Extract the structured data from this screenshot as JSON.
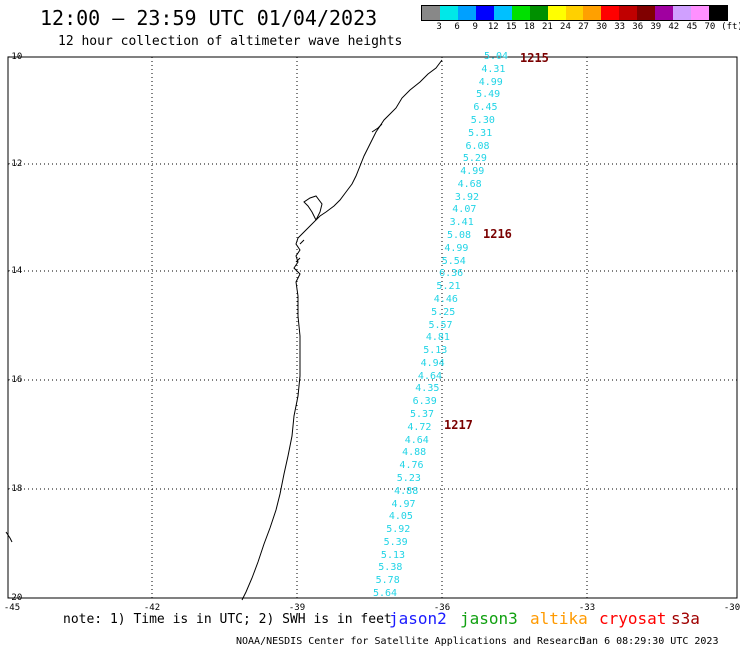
{
  "title": "12:00 – 23:59 UTC 01/04/2023",
  "subtitle": "12 hour collection of altimeter wave heights",
  "colorbar": {
    "colors": [
      "#888888",
      "#00e8e8",
      "#00a0ff",
      "#0000ff",
      "#00c0ff",
      "#00e000",
      "#009000",
      "#ffff00",
      "#ffd000",
      "#ffa000",
      "#ff0000",
      "#c00000",
      "#800000",
      "#a000a0",
      "#d0a0ff",
      "#ff90ff",
      "#000000"
    ],
    "labels": [
      "3",
      "6",
      "9",
      "12",
      "15",
      "18",
      "21",
      "24",
      "27",
      "30",
      "33",
      "36",
      "39",
      "42",
      "45",
      "70",
      "(ft)"
    ]
  },
  "axes": {
    "y_labels": [
      "-10",
      "-12",
      "-14",
      "-16",
      "-18",
      "-20"
    ],
    "x_labels": [
      "-45",
      "-42",
      "-39",
      "-36",
      "-33",
      "-30"
    ]
  },
  "passes": [
    "1215",
    "1216",
    "1217"
  ],
  "wave_heights": [
    "5.04",
    "4.31",
    "4.99",
    "5.49",
    "6.45",
    "5.30",
    "5.31",
    "6.08",
    "5.29",
    "4.99",
    "4.68",
    "3.92",
    "4.07",
    "3.41",
    "5.08",
    "4.99",
    "5.54",
    "6.36",
    "5.21",
    "4.46",
    "5.25",
    "5.57",
    "4.81",
    "5.13",
    "4.94",
    "4.64",
    "4.35",
    "6.39",
    "5.37",
    "4.72",
    "4.64",
    "4.88",
    "4.76",
    "5.23",
    "4.88",
    "4.97",
    "4.05",
    "5.92",
    "5.39",
    "5.13",
    "5.38",
    "5.78",
    "5.64"
  ],
  "note": "note: 1) Time is in UTC; 2) SWH is in feet",
  "satellites": [
    {
      "name": "jason2",
      "color": "#1a1aff"
    },
    {
      "name": "jason3",
      "color": "#10a010"
    },
    {
      "name": "altika",
      "color": "#ff9a00"
    },
    {
      "name": "cryosat",
      "color": "#ff0000"
    },
    {
      "name": "s3a",
      "color": "#a00000"
    }
  ],
  "credit": "NOAA/NESDIS Center for Satellite Applications and Research",
  "datestamp": "Jan  6 08:29:30 UTC 2023"
}
